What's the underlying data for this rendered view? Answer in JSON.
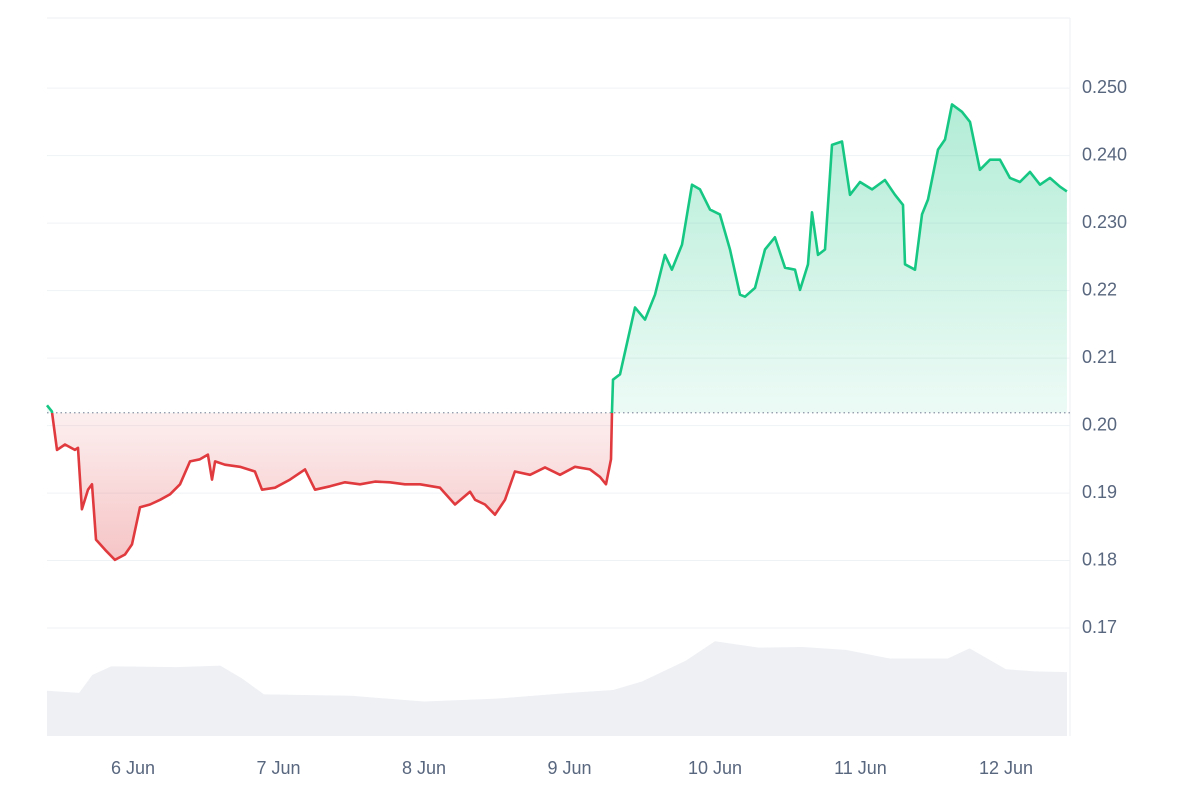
{
  "chart_data": {
    "type": "line",
    "x": [
      5.409,
      5.443,
      5.478,
      5.533,
      5.601,
      5.622,
      5.649,
      5.691,
      5.718,
      5.746,
      5.808,
      5.876,
      5.945,
      5.993,
      6.048,
      6.117,
      6.186,
      6.254,
      6.323,
      6.392,
      6.46,
      6.515,
      6.543,
      6.564,
      6.632,
      6.735,
      6.838,
      6.887,
      6.976,
      7.079,
      7.182,
      7.251,
      7.354,
      7.457,
      7.56,
      7.663,
      7.766,
      7.869,
      7.973,
      8.11,
      8.213,
      8.316,
      8.351,
      8.419,
      8.488,
      8.557,
      8.625,
      8.729,
      8.832,
      8.935,
      9.038,
      9.141,
      9.21,
      9.251,
      9.285,
      9.292,
      9.299,
      9.347,
      9.416,
      9.45,
      9.519,
      9.588,
      9.656,
      9.704,
      9.773,
      9.842,
      9.897,
      9.966,
      10.034,
      10.103,
      10.172,
      10.206,
      10.275,
      10.344,
      10.412,
      10.481,
      10.55,
      10.584,
      10.639,
      10.667,
      10.708,
      10.756,
      10.804,
      10.873,
      10.928,
      10.997,
      11.079,
      11.168,
      11.237,
      11.292,
      11.306,
      11.375,
      11.423,
      11.464,
      11.533,
      11.581,
      11.629,
      11.698,
      11.753,
      11.821,
      11.89,
      11.959,
      12.027,
      12.096,
      12.165,
      12.234,
      12.302,
      12.371,
      12.419
    ],
    "values": [
      0.203,
      0.2021,
      0.1964,
      0.1972,
      0.1964,
      0.1967,
      0.1876,
      0.1905,
      0.1913,
      0.1831,
      0.1816,
      0.1801,
      0.1809,
      0.1824,
      0.1879,
      0.1883,
      0.189,
      0.1898,
      0.1913,
      0.1947,
      0.195,
      0.1957,
      0.192,
      0.1947,
      0.1942,
      0.1939,
      0.1932,
      0.1905,
      0.1908,
      0.192,
      0.1935,
      0.1905,
      0.191,
      0.1916,
      0.1913,
      0.1917,
      0.1916,
      0.1913,
      0.1913,
      0.1908,
      0.1883,
      0.1902,
      0.189,
      0.1883,
      0.1868,
      0.189,
      0.1932,
      0.1927,
      0.1938,
      0.1927,
      0.1939,
      0.1935,
      0.1924,
      0.1913,
      0.195,
      0.2021,
      0.2068,
      0.2076,
      0.2142,
      0.2175,
      0.2157,
      0.2194,
      0.2253,
      0.2231,
      0.2268,
      0.2357,
      0.235,
      0.232,
      0.2313,
      0.2261,
      0.2194,
      0.2191,
      0.2204,
      0.2261,
      0.2279,
      0.2234,
      0.2231,
      0.2201,
      0.2239,
      0.2316,
      0.2253,
      0.2261,
      0.2416,
      0.2421,
      0.2342,
      0.2361,
      0.235,
      0.2364,
      0.2342,
      0.2327,
      0.2239,
      0.2231,
      0.2313,
      0.2335,
      0.2409,
      0.2424,
      0.2476,
      0.2465,
      0.245,
      0.2379,
      0.2394,
      0.2394,
      0.2367,
      0.2361,
      0.2376,
      0.2357,
      0.2367,
      0.2354,
      0.2347
    ],
    "baseline": 0.2019,
    "color_up": "#16c784",
    "color_down": "#e03a3e",
    "volume": {
      "x": [
        5.409,
        5.63,
        5.72,
        5.85,
        6.3,
        6.6,
        6.75,
        6.9,
        7.5,
        8.0,
        8.5,
        9.0,
        9.3,
        9.5,
        9.8,
        10.0,
        10.3,
        10.6,
        10.9,
        11.2,
        11.6,
        11.75,
        12.0,
        12.2,
        12.419
      ],
      "values": [
        6.3,
        6.0,
        8.5,
        9.7,
        9.6,
        9.8,
        8.0,
        5.8,
        5.6,
        4.8,
        5.2,
        6.0,
        6.4,
        7.6,
        10.5,
        13.2,
        12.3,
        12.4,
        12.0,
        10.8,
        10.8,
        12.2,
        9.3,
        9.0,
        8.9
      ],
      "color": "#eef0f4",
      "axis": "y2"
    },
    "xlim": [
      5.409,
      12.44
    ],
    "xticks": [
      {
        "value": 6,
        "label": "6 Jun"
      },
      {
        "value": 7,
        "label": "7 Jun"
      },
      {
        "value": 8,
        "label": "8 Jun"
      },
      {
        "value": 9,
        "label": "9 Jun"
      },
      {
        "value": 10,
        "label": "10 Jun"
      },
      {
        "value": 11,
        "label": "11 Jun"
      },
      {
        "value": 12,
        "label": "12 Jun"
      }
    ],
    "ylim": [
      0.154,
      0.2604
    ],
    "yticks": [
      0.17,
      0.18,
      0.19,
      {
        "value": 0.2,
        "label": "0.20"
      },
      0.21,
      0.22,
      {
        "value": 0.23,
        "label": "0.230"
      },
      {
        "value": 0.24,
        "label": "0.240"
      },
      {
        "value": 0.25,
        "label": "0.250"
      }
    ],
    "y2lim": [
      0,
      100
    ],
    "grid": true
  }
}
